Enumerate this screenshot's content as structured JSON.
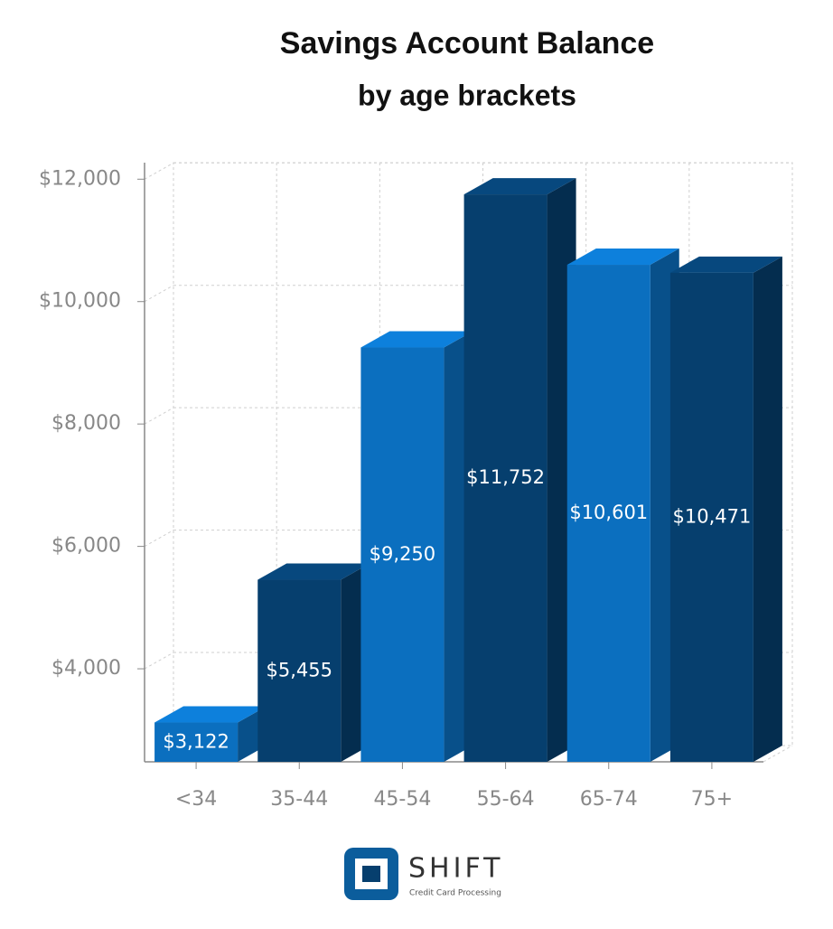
{
  "chart_data": {
    "type": "bar3d",
    "title": "Savings Account Balance",
    "subtitle": "by age brackets",
    "categories": [
      "<34",
      "35-44",
      "45-54",
      "55-64",
      "65-74",
      "75+"
    ],
    "values": [
      3122,
      5455,
      9250,
      11752,
      10601,
      10471
    ],
    "value_labels": [
      "$3,122",
      "$5,455",
      "$9,250",
      "$11,752",
      "$10,601",
      "$10,471"
    ],
    "colors": [
      "#0b6fbf",
      "#063f6e",
      "#0b6fbf",
      "#063f6e",
      "#0b6fbf",
      "#063f6e"
    ],
    "ylim": [
      2480,
      12270
    ],
    "yticks": [
      {
        "value": 4000,
        "label": "$4,000"
      },
      {
        "value": 6000,
        "label": "$6,000"
      },
      {
        "value": 8000,
        "label": "$8,000"
      },
      {
        "value": 10000,
        "label": "$10,000"
      },
      {
        "value": 12000,
        "label": "$12,000"
      }
    ],
    "grid": true
  },
  "logo": {
    "name": "SHIFT",
    "tagline": "Credit Card Processing"
  }
}
